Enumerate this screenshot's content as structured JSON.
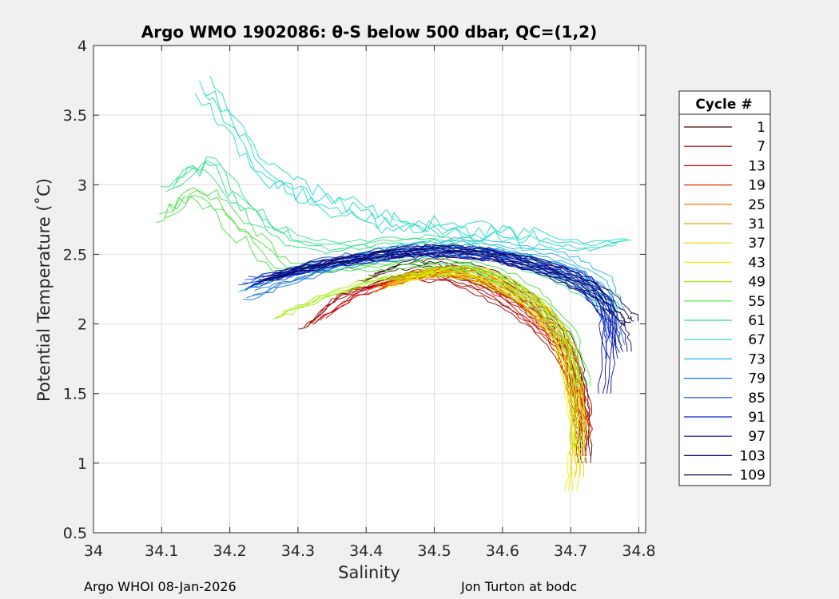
{
  "chart_data": {
    "type": "line",
    "title": "Argo WMO 1902086: θ-S below 500 dbar,  QC=(1,2)",
    "xlabel": "Salinity",
    "ylabel": "Potential Temperature (˚C)",
    "xlim": [
      34.0,
      34.81
    ],
    "ylim": [
      0.5,
      4.0
    ],
    "xticks": [
      34.0,
      34.1,
      34.2,
      34.3,
      34.4,
      34.5,
      34.6,
      34.7,
      34.8
    ],
    "xtick_labels": [
      "34",
      "34.1",
      "34.2",
      "34.3",
      "34.4",
      "34.5",
      "34.6",
      "34.7",
      "34.8"
    ],
    "yticks": [
      0.5,
      1.0,
      1.5,
      2.0,
      2.5,
      3.0,
      3.5,
      4.0
    ],
    "ytick_labels": [
      "0.5",
      "1",
      "1.5",
      "2",
      "2.5",
      "3",
      "3.5",
      "4"
    ],
    "grid": true,
    "legend": {
      "title": "Cycle #",
      "placement": "right-outside",
      "entries": [
        {
          "label": "1",
          "color": "#3a0a0a"
        },
        {
          "label": "7",
          "color": "#9a0000"
        },
        {
          "label": "13",
          "color": "#d20000"
        },
        {
          "label": "19",
          "color": "#e52a00"
        },
        {
          "label": "25",
          "color": "#ef6a00"
        },
        {
          "label": "31",
          "color": "#f0a000"
        },
        {
          "label": "37",
          "color": "#f2cc00"
        },
        {
          "label": "43",
          "color": "#f4f000"
        },
        {
          "label": "49",
          "color": "#9ef000"
        },
        {
          "label": "55",
          "color": "#46e042"
        },
        {
          "label": "61",
          "color": "#2ee08a"
        },
        {
          "label": "67",
          "color": "#1cd9c6"
        },
        {
          "label": "73",
          "color": "#19b6e8"
        },
        {
          "label": "79",
          "color": "#1473d8"
        },
        {
          "label": "85",
          "color": "#1040d8"
        },
        {
          "label": "91",
          "color": "#0a22c8"
        },
        {
          "label": "97",
          "color": "#0a0aa8"
        },
        {
          "label": "103",
          "color": "#0a0a80"
        },
        {
          "label": "109",
          "color": "#0a0a50"
        }
      ]
    },
    "series": [
      {
        "name": "1",
        "color": "#3a0a0a",
        "points": [
          [
            34.4,
            2.33
          ],
          [
            34.45,
            2.42
          ],
          [
            34.5,
            2.44
          ],
          [
            34.55,
            2.4
          ],
          [
            34.6,
            2.3
          ],
          [
            34.65,
            2.12
          ],
          [
            34.69,
            1.9
          ],
          [
            34.71,
            1.65
          ],
          [
            34.72,
            1.35
          ],
          [
            34.72,
            1.0
          ]
        ]
      },
      {
        "name": "7",
        "color": "#9a0000",
        "points": [
          [
            34.31,
            1.98
          ],
          [
            34.36,
            2.2
          ],
          [
            34.42,
            2.3
          ],
          [
            34.48,
            2.35
          ],
          [
            34.53,
            2.33
          ],
          [
            34.58,
            2.22
          ],
          [
            34.63,
            2.08
          ],
          [
            34.67,
            1.92
          ],
          [
            34.7,
            1.7
          ],
          [
            34.72,
            1.4
          ],
          [
            34.72,
            1.05
          ]
        ]
      },
      {
        "name": "13",
        "color": "#d20000",
        "points": [
          [
            34.33,
            2.02
          ],
          [
            34.39,
            2.22
          ],
          [
            34.45,
            2.33
          ],
          [
            34.51,
            2.36
          ],
          [
            34.56,
            2.3
          ],
          [
            34.61,
            2.17
          ],
          [
            34.66,
            1.98
          ],
          [
            34.69,
            1.8
          ],
          [
            34.71,
            1.55
          ],
          [
            34.72,
            1.2
          ]
        ]
      },
      {
        "name": "19",
        "color": "#e52a00",
        "points": [
          [
            34.41,
            2.25
          ],
          [
            34.47,
            2.36
          ],
          [
            34.52,
            2.38
          ],
          [
            34.57,
            2.32
          ],
          [
            34.62,
            2.2
          ],
          [
            34.66,
            2.02
          ],
          [
            34.69,
            1.82
          ],
          [
            34.71,
            1.55
          ],
          [
            34.72,
            1.25
          ]
        ]
      },
      {
        "name": "25",
        "color": "#ef6a00",
        "points": [
          [
            34.42,
            2.26
          ],
          [
            34.48,
            2.36
          ],
          [
            34.53,
            2.38
          ],
          [
            34.58,
            2.32
          ],
          [
            34.63,
            2.19
          ],
          [
            34.67,
            2.0
          ],
          [
            34.7,
            1.78
          ],
          [
            34.71,
            1.5
          ],
          [
            34.72,
            1.15
          ]
        ]
      },
      {
        "name": "31",
        "color": "#f0a000",
        "points": [
          [
            34.43,
            2.28
          ],
          [
            34.49,
            2.37
          ],
          [
            34.54,
            2.38
          ],
          [
            34.59,
            2.31
          ],
          [
            34.64,
            2.17
          ],
          [
            34.68,
            1.97
          ],
          [
            34.7,
            1.72
          ],
          [
            34.71,
            1.4
          ],
          [
            34.71,
            1.05
          ]
        ]
      },
      {
        "name": "37",
        "color": "#f2cc00",
        "points": [
          [
            34.44,
            2.3
          ],
          [
            34.5,
            2.38
          ],
          [
            34.55,
            2.38
          ],
          [
            34.6,
            2.3
          ],
          [
            34.65,
            2.14
          ],
          [
            34.68,
            1.94
          ],
          [
            34.7,
            1.68
          ],
          [
            34.71,
            1.3
          ],
          [
            34.71,
            0.9
          ]
        ]
      },
      {
        "name": "43",
        "color": "#f4f000",
        "points": [
          [
            34.45,
            2.3
          ],
          [
            34.5,
            2.38
          ],
          [
            34.56,
            2.37
          ],
          [
            34.61,
            2.28
          ],
          [
            34.66,
            2.1
          ],
          [
            34.69,
            1.88
          ],
          [
            34.7,
            1.6
          ],
          [
            34.71,
            1.2
          ],
          [
            34.7,
            0.8
          ]
        ]
      },
      {
        "name": "49",
        "color": "#9ef000",
        "points": [
          [
            34.27,
            2.05
          ],
          [
            34.33,
            2.18
          ],
          [
            34.4,
            2.3
          ],
          [
            34.47,
            2.36
          ],
          [
            34.53,
            2.38
          ],
          [
            34.58,
            2.32
          ],
          [
            34.63,
            2.2
          ],
          [
            34.67,
            2.02
          ],
          [
            34.7,
            1.78
          ],
          [
            34.71,
            1.45
          ],
          [
            34.71,
            1.1
          ]
        ]
      },
      {
        "name": "55",
        "color": "#46e042",
        "points": [
          [
            34.1,
            2.8
          ],
          [
            34.16,
            2.95
          ],
          [
            34.22,
            2.65
          ],
          [
            34.28,
            2.4
          ],
          [
            34.35,
            2.4
          ],
          [
            34.42,
            2.42
          ],
          [
            34.48,
            2.44
          ],
          [
            34.55,
            2.42
          ],
          [
            34.61,
            2.32
          ],
          [
            34.66,
            2.15
          ],
          [
            34.7,
            1.9
          ],
          [
            34.72,
            1.55
          ]
        ]
      },
      {
        "name": "61",
        "color": "#2ee08a",
        "points": [
          [
            34.11,
            3.0
          ],
          [
            34.17,
            3.15
          ],
          [
            34.23,
            2.8
          ],
          [
            34.29,
            2.6
          ],
          [
            34.35,
            2.55
          ],
          [
            34.42,
            2.58
          ],
          [
            34.48,
            2.6
          ],
          [
            34.54,
            2.58
          ],
          [
            34.6,
            2.5
          ],
          [
            34.66,
            2.38
          ],
          [
            34.72,
            2.25
          ],
          [
            34.76,
            2.1
          ]
        ]
      },
      {
        "name": "67",
        "color": "#1cd9c6",
        "points": [
          [
            34.16,
            3.7
          ],
          [
            34.2,
            3.45
          ],
          [
            34.25,
            3.1
          ],
          [
            34.3,
            2.95
          ],
          [
            34.36,
            2.85
          ],
          [
            34.42,
            2.75
          ],
          [
            34.48,
            2.7
          ],
          [
            34.54,
            2.66
          ],
          [
            34.6,
            2.64
          ],
          [
            34.66,
            2.6
          ],
          [
            34.72,
            2.55
          ],
          [
            34.78,
            2.6
          ]
        ]
      },
      {
        "name": "73",
        "color": "#19b6e8",
        "points": [
          [
            34.22,
            2.25
          ],
          [
            34.28,
            2.35
          ],
          [
            34.34,
            2.42
          ],
          [
            34.4,
            2.5
          ],
          [
            34.46,
            2.55
          ],
          [
            34.52,
            2.58
          ],
          [
            34.58,
            2.56
          ],
          [
            34.64,
            2.52
          ],
          [
            34.7,
            2.45
          ],
          [
            34.75,
            2.3
          ],
          [
            34.77,
            2.1
          ]
        ]
      },
      {
        "name": "79",
        "color": "#1473d8",
        "points": [
          [
            34.23,
            2.2
          ],
          [
            34.29,
            2.3
          ],
          [
            34.35,
            2.4
          ],
          [
            34.41,
            2.46
          ],
          [
            34.47,
            2.5
          ],
          [
            34.53,
            2.52
          ],
          [
            34.59,
            2.5
          ],
          [
            34.65,
            2.44
          ],
          [
            34.71,
            2.34
          ],
          [
            34.75,
            2.15
          ],
          [
            34.77,
            1.85
          ]
        ]
      },
      {
        "name": "85",
        "color": "#1040d8",
        "points": [
          [
            34.22,
            2.3
          ],
          [
            34.28,
            2.38
          ],
          [
            34.34,
            2.45
          ],
          [
            34.4,
            2.5
          ],
          [
            34.46,
            2.53
          ],
          [
            34.52,
            2.53
          ],
          [
            34.58,
            2.5
          ],
          [
            34.64,
            2.44
          ],
          [
            34.7,
            2.36
          ],
          [
            34.75,
            2.2
          ],
          [
            34.76,
            1.9
          ]
        ]
      },
      {
        "name": "91",
        "color": "#0a22c8",
        "points": [
          [
            34.23,
            2.28
          ],
          [
            34.29,
            2.36
          ],
          [
            34.35,
            2.43
          ],
          [
            34.41,
            2.48
          ],
          [
            34.47,
            2.51
          ],
          [
            34.53,
            2.52
          ],
          [
            34.59,
            2.49
          ],
          [
            34.65,
            2.42
          ],
          [
            34.71,
            2.33
          ],
          [
            34.75,
            2.15
          ],
          [
            34.76,
            1.75
          ]
        ]
      },
      {
        "name": "97",
        "color": "#0a0aa8",
        "points": [
          [
            34.24,
            2.3
          ],
          [
            34.3,
            2.38
          ],
          [
            34.36,
            2.44
          ],
          [
            34.42,
            2.49
          ],
          [
            34.48,
            2.52
          ],
          [
            34.54,
            2.52
          ],
          [
            34.6,
            2.48
          ],
          [
            34.66,
            2.41
          ],
          [
            34.72,
            2.3
          ],
          [
            34.76,
            2.05
          ],
          [
            34.75,
            1.5
          ]
        ]
      },
      {
        "name": "103",
        "color": "#0a0a80",
        "points": [
          [
            34.25,
            2.32
          ],
          [
            34.31,
            2.4
          ],
          [
            34.37,
            2.46
          ],
          [
            34.43,
            2.5
          ],
          [
            34.49,
            2.53
          ],
          [
            34.55,
            2.52
          ],
          [
            34.61,
            2.47
          ],
          [
            34.67,
            2.38
          ],
          [
            34.73,
            2.25
          ],
          [
            34.77,
            2.0
          ],
          [
            34.78,
            1.8
          ]
        ]
      },
      {
        "name": "109",
        "color": "#0a0a50",
        "points": [
          [
            34.26,
            2.34
          ],
          [
            34.32,
            2.42
          ],
          [
            34.38,
            2.47
          ],
          [
            34.44,
            2.51
          ],
          [
            34.5,
            2.53
          ],
          [
            34.56,
            2.51
          ],
          [
            34.62,
            2.46
          ],
          [
            34.68,
            2.37
          ],
          [
            34.74,
            2.24
          ],
          [
            34.78,
            2.05
          ],
          [
            34.79,
            2.02
          ]
        ]
      }
    ]
  },
  "footer": {
    "left": "Argo WHOI 08-Jan-2026",
    "right": "Jon Turton at bodc"
  }
}
